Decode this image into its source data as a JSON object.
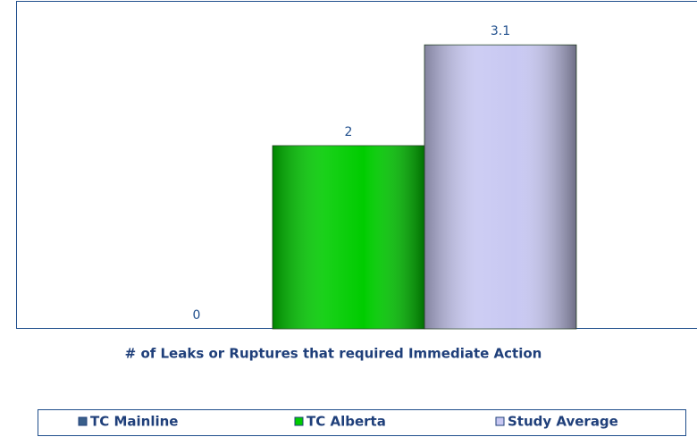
{
  "chart_data": {
    "type": "bar",
    "categories": [
      "# of Leaks or Ruptures that required Immediate Action"
    ],
    "series": [
      {
        "name": "TC Mainline",
        "color": "#3a5f8a",
        "values": [
          0
        ]
      },
      {
        "name": "TC Alberta",
        "color": "#00cc00",
        "values": [
          2
        ]
      },
      {
        "name": "Study Average",
        "color": "#c8c8f2",
        "values": [
          3.1
        ]
      }
    ],
    "ylim": [
      0,
      3.57
    ],
    "legend": "bottom"
  }
}
